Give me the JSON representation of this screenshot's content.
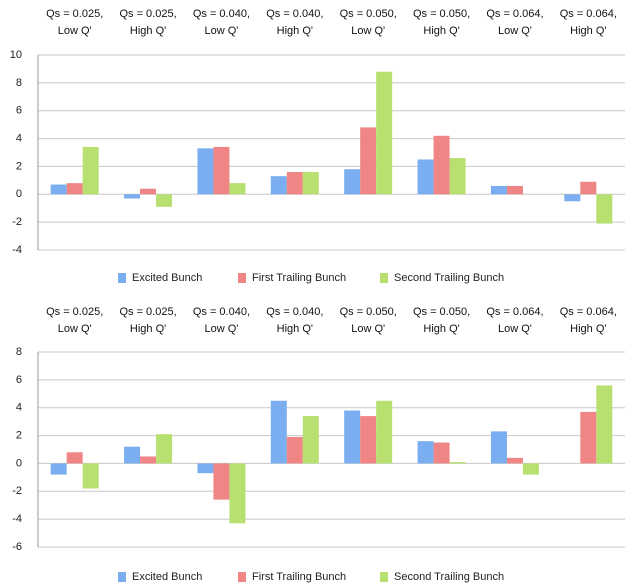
{
  "chart_data": [
    {
      "type": "bar",
      "categories": [
        "Qs = 0.025,\nLow Q'",
        "Qs = 0.025,\nHigh Q'",
        "Qs = 0.040,\nLow Q'",
        "Qs = 0.040,\nHigh Q'",
        "Qs = 0.050,\nLow Q'",
        "Qs = 0.050,\nHigh Q'",
        "Qs = 0.064,\nLow Q'",
        "Qs = 0.064,\nHigh Q'"
      ],
      "series": [
        {
          "name": "Excited Bunch",
          "color": "#7aaef0",
          "values": [
            0.7,
            -0.3,
            3.3,
            1.3,
            1.8,
            2.5,
            0.6,
            -0.5
          ]
        },
        {
          "name": "First Trailing Bunch",
          "color": "#f08585",
          "values": [
            0.8,
            0.4,
            3.4,
            1.6,
            4.8,
            4.2,
            0.6,
            0.9
          ]
        },
        {
          "name": "Second Trailing Bunch",
          "color": "#b8e070",
          "values": [
            3.4,
            -0.9,
            0.8,
            1.6,
            8.8,
            2.6,
            0,
            -2.1
          ]
        }
      ],
      "ylim": [
        -4,
        10
      ],
      "yticks": [
        -4,
        -2,
        0,
        2,
        4,
        6,
        8,
        10
      ],
      "grid": true,
      "legend": "bottom"
    },
    {
      "type": "bar",
      "categories": [
        "Qs = 0.025,\nLow Q'",
        "Qs = 0.025,\nHigh Q'",
        "Qs = 0.040,\nLow Q'",
        "Qs = 0.040,\nHigh Q'",
        "Qs = 0.050,\nLow Q'",
        "Qs = 0.050,\nHigh Q'",
        "Qs = 0.064,\nLow Q'",
        "Qs = 0.064,\nHigh Q'"
      ],
      "series": [
        {
          "name": "Excited Bunch",
          "color": "#7aaef0",
          "values": [
            -0.8,
            1.2,
            -0.7,
            4.5,
            3.8,
            1.6,
            2.3,
            0
          ]
        },
        {
          "name": "First Trailing Bunch",
          "color": "#f08585",
          "values": [
            0.8,
            0.5,
            -2.6,
            1.9,
            3.4,
            1.5,
            0.4,
            3.7
          ]
        },
        {
          "name": "Second Trailing Bunch",
          "color": "#b8e070",
          "values": [
            -1.8,
            2.1,
            -4.3,
            3.4,
            4.5,
            0.1,
            -0.8,
            5.6
          ]
        }
      ],
      "ylim": [
        -6,
        8
      ],
      "yticks": [
        -6,
        -4,
        -2,
        0,
        2,
        4,
        6,
        8
      ],
      "grid": true,
      "legend": "bottom"
    }
  ]
}
